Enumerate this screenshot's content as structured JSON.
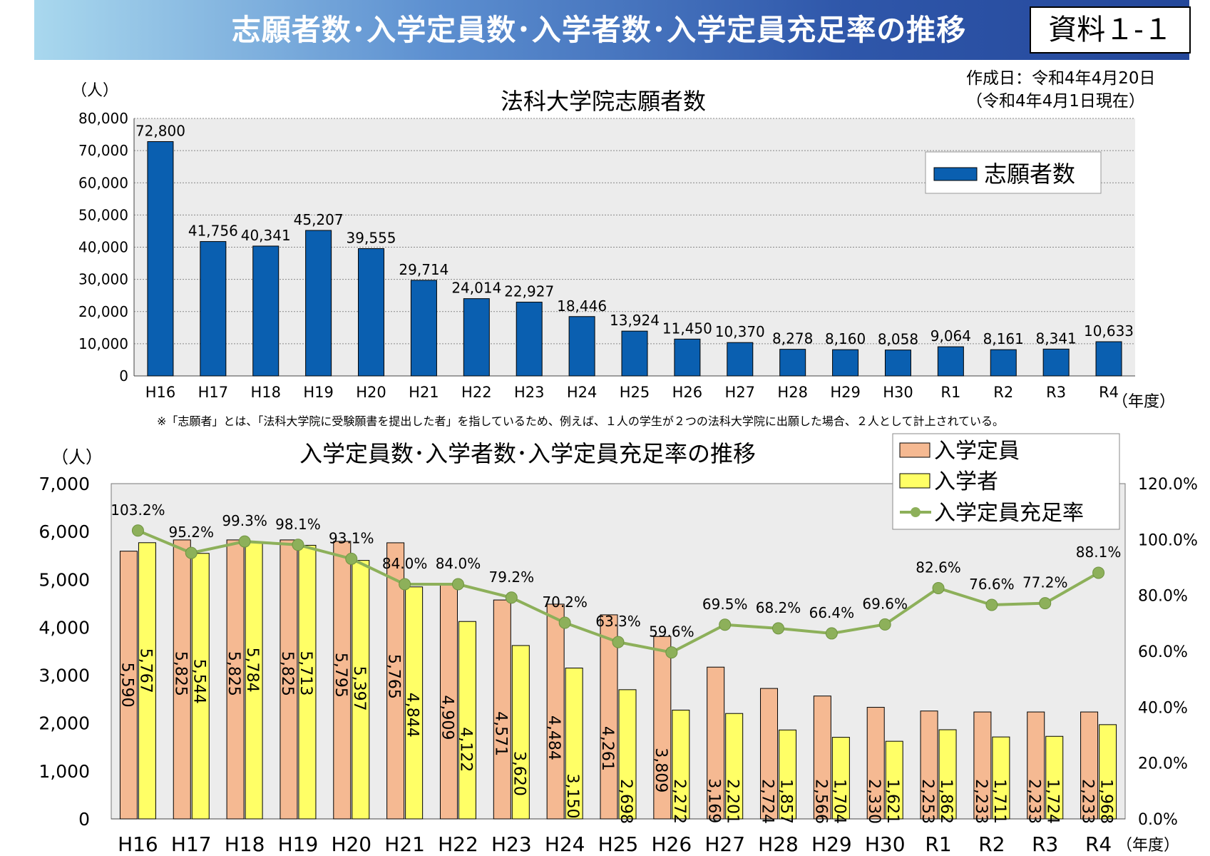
{
  "header": {
    "title": "志願者数･入学定員数･入学者数･入学定員充足率の推移",
    "document_label": "資料１-１",
    "created_date": "作成日：令和4年4月20日",
    "as_of": "（令和4年4月1日現在）"
  },
  "colors": {
    "applicants_bar": "#0a5fb0",
    "capacity_bar": "#f5b992",
    "enrollee_bar": "#ffff66",
    "rate_line": "#8db05a",
    "plot_background": "#ececec",
    "header_gradient": [
      "#a9d8ee",
      "#24479a"
    ]
  },
  "chart_data": [
    {
      "type": "bar",
      "title": "法科大学院志願者数",
      "ylabel": "（人）",
      "xlabel": "（年度）",
      "ylim": [
        0,
        80000
      ],
      "yticks": [
        0,
        10000,
        20000,
        30000,
        40000,
        50000,
        60000,
        70000,
        80000
      ],
      "ytick_labels": [
        "0",
        "10,000",
        "20,000",
        "30,000",
        "40,000",
        "50,000",
        "60,000",
        "70,000",
        "80,000"
      ],
      "categories": [
        "H16",
        "H17",
        "H18",
        "H19",
        "H20",
        "H21",
        "H22",
        "H23",
        "H24",
        "H25",
        "H26",
        "H27",
        "H28",
        "H29",
        "H30",
        "R1",
        "R2",
        "R3",
        "R4"
      ],
      "series": [
        {
          "name": "志願者数",
          "values": [
            72800,
            41756,
            40341,
            45207,
            39555,
            29714,
            24014,
            22927,
            18446,
            13924,
            11450,
            10370,
            8278,
            8160,
            8058,
            9064,
            8161,
            8341,
            10633
          ],
          "labels": [
            "72,800",
            "41,756",
            "40,341",
            "45,207",
            "39,555",
            "29,714",
            "24,014",
            "22,927",
            "18,446",
            "13,924",
            "11,450",
            "10,370",
            "8,278",
            "8,160",
            "8,058",
            "9,064",
            "8,161",
            "8,341",
            "10,633"
          ]
        }
      ],
      "legend": "top-right",
      "grid": true,
      "footnote": "※「志願者」とは、「法科大学院に受験願書を提出した者」を指しているため、例えば、１人の学生が２つの法科大学院に出願した場合、２人として計上されている。"
    },
    {
      "type": "bar",
      "title": "入学定員数･入学者数･入学定員充足率の推移",
      "ylabel": "（人）",
      "xlabel": "（年度）",
      "ylim": [
        0,
        7000
      ],
      "yticks": [
        0,
        1000,
        2000,
        3000,
        4000,
        5000,
        6000,
        7000
      ],
      "ytick_labels": [
        "0",
        "1,000",
        "2,000",
        "3,000",
        "4,000",
        "5,000",
        "6,000",
        "7,000"
      ],
      "y2lim": [
        0,
        120
      ],
      "y2ticks": [
        0,
        20,
        40,
        60,
        80,
        100,
        120
      ],
      "y2tick_labels": [
        "0.0%",
        "20.0%",
        "40.0%",
        "60.0%",
        "80.0%",
        "100.0%",
        "120.0%"
      ],
      "categories": [
        "H16",
        "H17",
        "H18",
        "H19",
        "H20",
        "H21",
        "H22",
        "H23",
        "H24",
        "H25",
        "H26",
        "H27",
        "H28",
        "H29",
        "H30",
        "R1",
        "R2",
        "R3",
        "R4"
      ],
      "series": [
        {
          "name": "入学定員",
          "values": [
            5590,
            5825,
            5825,
            5825,
            5795,
            5765,
            4909,
            4571,
            4484,
            4261,
            3809,
            3169,
            2724,
            2566,
            2330,
            2253,
            2233,
            2233,
            2233
          ],
          "labels": [
            "5,590",
            "5,825",
            "5,825",
            "5,825",
            "5,795",
            "5,765",
            "4,909",
            "4,571",
            "4,484",
            "4,261",
            "3,809",
            "3,169",
            "2,724",
            "2,566",
            "2,330",
            "2,253",
            "2,233",
            "2,233",
            "2,233"
          ]
        },
        {
          "name": "入学者",
          "values": [
            5767,
            5544,
            5784,
            5713,
            5397,
            4844,
            4122,
            3620,
            3150,
            2698,
            2272,
            2201,
            1857,
            1704,
            1621,
            1862,
            1711,
            1724,
            1968
          ],
          "labels": [
            "5,767",
            "5,544",
            "5,784",
            "5,713",
            "5,397",
            "4,844",
            "4,122",
            "3,620",
            "3,150",
            "2,698",
            "2,272",
            "2,201",
            "1,857",
            "1,704",
            "1,621",
            "1,862",
            "1,711",
            "1,724",
            "1,968"
          ]
        },
        {
          "name": "入学定員充足率",
          "kind": "line",
          "axis": "right",
          "values": [
            103.2,
            95.2,
            99.3,
            98.1,
            93.1,
            84.0,
            84.0,
            79.2,
            70.2,
            63.3,
            59.6,
            69.5,
            68.2,
            66.4,
            69.6,
            82.6,
            76.6,
            77.2,
            88.1
          ],
          "labels": [
            "103.2%",
            "95.2%",
            "99.3%",
            "98.1%",
            "93.1%",
            "84.0%",
            "84.0%",
            "79.2%",
            "70.2%",
            "63.3%",
            "59.6%",
            "69.5%",
            "68.2%",
            "66.4%",
            "69.6%",
            "82.6%",
            "76.6%",
            "77.2%",
            "88.1%"
          ]
        }
      ],
      "legend": "top-right",
      "grid": false
    }
  ]
}
